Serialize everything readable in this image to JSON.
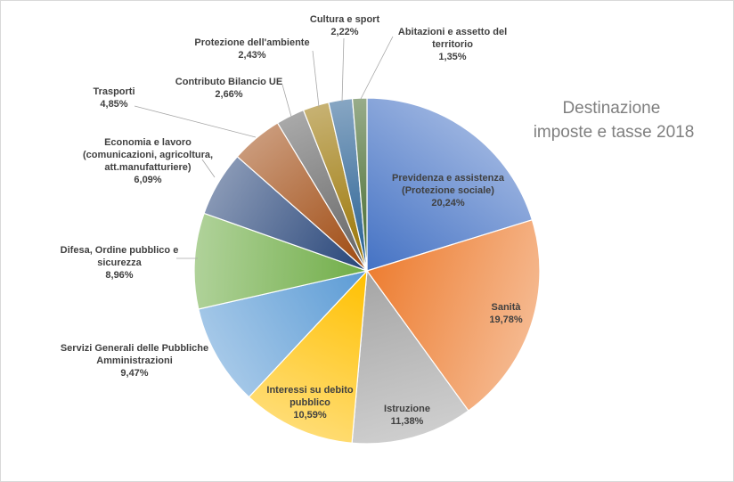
{
  "chart_data": {
    "type": "pie",
    "title_lines": [
      "Destinazione",
      "imposte e tasse 2018"
    ],
    "slices": [
      {
        "label_lines": [
          "Previdenza e assistenza",
          "(Protezione sociale)"
        ],
        "value_text": "20,24%",
        "value": 20.24,
        "color": "#4472c4"
      },
      {
        "label_lines": [
          "Sanità"
        ],
        "value_text": "19,78%",
        "value": 19.78,
        "color": "#ed7d31"
      },
      {
        "label_lines": [
          "Istruzione"
        ],
        "value_text": "11,38%",
        "value": 11.38,
        "color": "#a5a5a5"
      },
      {
        "label_lines": [
          "Interessi su debito",
          "pubblico"
        ],
        "value_text": "10,59%",
        "value": 10.59,
        "color": "#ffc000"
      },
      {
        "label_lines": [
          "Servizi Generali delle Pubbliche",
          "Amministrazioni"
        ],
        "value_text": "9,47%",
        "value": 9.47,
        "color": "#5b9bd5"
      },
      {
        "label_lines": [
          "Difesa, Ordine pubblico  e",
          "sicurezza"
        ],
        "value_text": "8,96%",
        "value": 8.96,
        "color": "#70ad47"
      },
      {
        "label_lines": [
          "Economia  e lavoro",
          "(comunicazioni,  agricoltura,",
          "att.manufatturiere)"
        ],
        "value_text": "6,09%",
        "value": 6.09,
        "color": "#264478"
      },
      {
        "label_lines": [
          "Trasporti"
        ],
        "value_text": "4,85%",
        "value": 4.85,
        "color": "#9e480e"
      },
      {
        "label_lines": [
          "Contributo  Bilancio UE"
        ],
        "value_text": "2,66%",
        "value": 2.66,
        "color": "#636363"
      },
      {
        "label_lines": [
          "Protezione  dell'ambiente"
        ],
        "value_text": "2,43%",
        "value": 2.43,
        "color": "#997300"
      },
      {
        "label_lines": [
          "Cultura  e sport"
        ],
        "value_text": "2,22%",
        "value": 2.22,
        "color": "#255e91"
      },
      {
        "label_lines": [
          "Abitazioni  e assetto del",
          "territorio"
        ],
        "value_text": "1,35%",
        "value": 1.35,
        "color": "#43682b"
      }
    ]
  }
}
